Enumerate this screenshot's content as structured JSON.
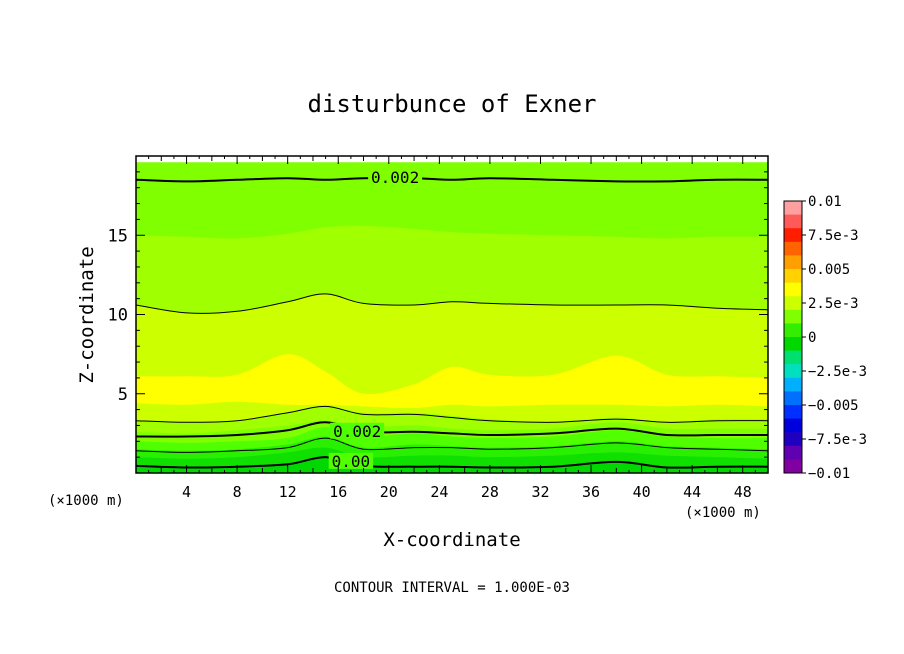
{
  "chart_data": {
    "type": "contour",
    "title": "disturbunce of Exner",
    "xlabel": "X-coordinate",
    "ylabel": "Z-coordinate",
    "x_unit": "(×1000 m)",
    "x_unit_right": "(×1000 m)",
    "xlim": [
      0,
      50
    ],
    "ylim": [
      0,
      20
    ],
    "x_ticks": [
      4,
      8,
      12,
      16,
      20,
      24,
      28,
      32,
      36,
      40,
      44,
      48
    ],
    "y_ticks": [
      5,
      10,
      15
    ],
    "contour_interval_text": "CONTOUR INTERVAL = 1.000E-03",
    "contour_labels": [
      {
        "text": "0.002",
        "x": 20.5,
        "z": 18.6
      },
      {
        "text": "0.002",
        "x": 17.5,
        "z": 2.6
      },
      {
        "text": "0.00",
        "x": 17,
        "z": 0.7
      }
    ],
    "bands": [
      {
        "value": 0.002,
        "color": "#7fff00",
        "z": [
          19.6,
          19.6,
          19.6,
          19.6,
          19.6,
          19.6,
          19.6,
          19.6,
          19.6,
          19.6,
          19.6,
          19.6,
          19.6,
          19.6
        ]
      },
      {
        "value": 0.0025,
        "color": "#a0ff00",
        "z": [
          15.0,
          14.9,
          14.8,
          15.1,
          15.5,
          15.6,
          15.4,
          15.2,
          15.1,
          15.0,
          14.9,
          14.8,
          14.9,
          14.9
        ]
      },
      {
        "value": 0.003,
        "color": "#ccff00",
        "z": [
          10.6,
          10.1,
          10.2,
          10.8,
          11.3,
          10.7,
          10.6,
          10.8,
          10.7,
          10.6,
          10.6,
          10.6,
          10.4,
          10.3
        ]
      },
      {
        "value": 0.0035,
        "color": "#ffff00",
        "z": [
          6.1,
          6.1,
          6.2,
          7.5,
          6.4,
          5.0,
          5.6,
          6.7,
          6.2,
          6.2,
          7.4,
          6.2,
          6.1,
          6.0
        ]
      },
      {
        "value": 0.003,
        "color": "#ccff00",
        "z": [
          4.4,
          4.3,
          4.5,
          4.3,
          4.3,
          4.2,
          4.1,
          4.3,
          4.2,
          4.3,
          4.3,
          4.2,
          4.3,
          4.2
        ]
      },
      {
        "value": 0.0025,
        "color": "#a0ff00",
        "z": [
          3.3,
          3.2,
          3.3,
          3.8,
          4.2,
          3.8,
          3.8,
          3.6,
          3.4,
          3.2,
          3.5,
          3.2,
          3.4,
          3.4
        ]
      },
      {
        "value": 0.002,
        "color": "#7fff00",
        "z": [
          2.6,
          2.5,
          2.7,
          3.0,
          3.3,
          2.9,
          3.0,
          2.8,
          2.7,
          2.8,
          3.2,
          2.8,
          2.8,
          2.8
        ]
      },
      {
        "value": 0.0015,
        "color": "#50ff00",
        "z": [
          2.0,
          1.9,
          2.0,
          2.2,
          2.9,
          2.3,
          2.5,
          2.3,
          2.2,
          2.3,
          2.7,
          2.3,
          2.2,
          2.2
        ]
      },
      {
        "value": 0.001,
        "color": "#28f000",
        "z": [
          1.5,
          1.4,
          1.5,
          1.8,
          2.3,
          1.6,
          1.8,
          1.7,
          1.6,
          1.7,
          2.0,
          1.7,
          1.6,
          1.5
        ]
      },
      {
        "value": 0.0005,
        "color": "#10e000",
        "z": [
          1.0,
          0.9,
          1.0,
          1.3,
          1.6,
          1.0,
          1.1,
          1.1,
          1.0,
          1.1,
          1.3,
          1.1,
          1.0,
          0.9
        ]
      },
      {
        "value": 0.0,
        "color": "#00d800",
        "z": [
          0.5,
          0.4,
          0.4,
          0.6,
          1.0,
          0.5,
          0.4,
          0.4,
          0.4,
          0.4,
          0.7,
          0.4,
          0.4,
          0.4
        ]
      }
    ],
    "band_x": [
      0,
      4,
      8,
      12,
      15,
      18,
      22,
      25,
      28,
      33,
      38,
      42,
      46,
      50
    ],
    "contour_lines": [
      {
        "level": 0.002,
        "width": 2,
        "z": [
          18.5,
          18.4,
          18.5,
          18.6,
          18.5,
          18.6,
          18.6,
          18.5,
          18.6,
          18.5,
          18.4,
          18.4,
          18.5,
          18.5
        ]
      },
      {
        "level": 0.003,
        "width": 1,
        "z": [
          10.6,
          10.1,
          10.2,
          10.8,
          11.3,
          10.7,
          10.6,
          10.8,
          10.7,
          10.6,
          10.6,
          10.6,
          10.4,
          10.3
        ]
      },
      {
        "level": 0.003,
        "width": 1,
        "z": [
          3.3,
          3.2,
          3.3,
          3.8,
          4.2,
          3.7,
          3.7,
          3.5,
          3.3,
          3.2,
          3.4,
          3.2,
          3.3,
          3.3
        ]
      },
      {
        "level": 0.002,
        "width": 2,
        "z": [
          2.3,
          2.3,
          2.4,
          2.7,
          3.2,
          2.6,
          2.6,
          2.5,
          2.4,
          2.5,
          2.8,
          2.4,
          2.4,
          2.4
        ]
      },
      {
        "level": 0.001,
        "width": 1,
        "z": [
          1.4,
          1.3,
          1.4,
          1.6,
          2.2,
          1.5,
          1.6,
          1.6,
          1.5,
          1.6,
          1.9,
          1.6,
          1.5,
          1.4
        ]
      },
      {
        "level": 0.0,
        "width": 2,
        "z": [
          0.45,
          0.35,
          0.4,
          0.55,
          1.0,
          0.45,
          0.4,
          0.4,
          0.35,
          0.4,
          0.7,
          0.35,
          0.4,
          0.4
        ]
      }
    ],
    "colorbar": {
      "labels": [
        "0.01",
        "7.5e-3",
        "0.005",
        "2.5e-3",
        "0",
        "−2.5e-3",
        "−0.005",
        "−7.5e-3",
        "−0.01"
      ],
      "colors": [
        "#ff9fa0",
        "#ff5a5a",
        "#ff1e00",
        "#ff6400",
        "#ffa000",
        "#ffd200",
        "#ffff00",
        "#ccff00",
        "#7fff00",
        "#33ee00",
        "#00d800",
        "#00e070",
        "#00e0c0",
        "#00b0ff",
        "#0070ff",
        "#0030ff",
        "#0000dd",
        "#2000c0",
        "#6000b0",
        "#8000a0"
      ]
    },
    "grid": false
  }
}
